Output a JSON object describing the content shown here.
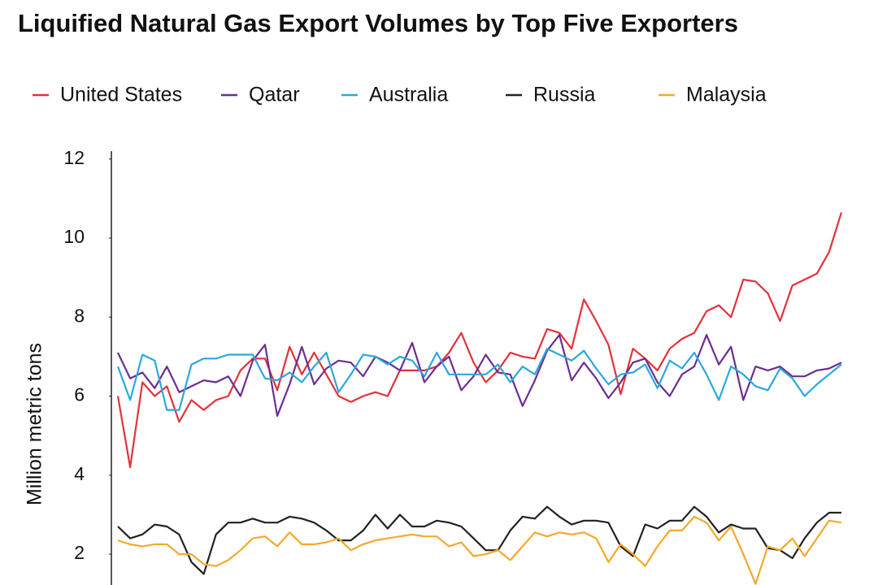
{
  "chart_data": {
    "type": "line",
    "title": "Liquified Natural Gas Export Volumes by Top Five Exporters",
    "y_label": "Million metric tons",
    "categories": [
      null,
      null,
      null,
      null,
      null,
      null,
      null,
      null,
      null,
      null,
      null,
      null,
      null,
      null,
      null,
      null,
      null,
      null,
      null,
      null,
      null,
      null,
      null,
      null,
      null,
      null,
      null,
      null,
      null,
      null,
      null,
      null,
      null,
      null,
      null,
      null,
      null,
      null,
      null,
      null,
      null,
      null,
      null,
      null,
      null,
      null,
      null,
      null,
      null,
      null,
      null,
      null,
      null,
      null,
      null,
      null,
      null,
      null,
      null,
      null
    ],
    "ylim": [
      1.2,
      12.2
    ],
    "yticks": [
      2,
      4,
      6,
      8,
      10,
      12
    ],
    "grid": false,
    "legend": "top",
    "series": [
      {
        "name": "United States",
        "color": "#e3323b",
        "values": [
          6.0,
          4.2,
          6.35,
          6.0,
          6.25,
          5.35,
          5.9,
          5.65,
          5.9,
          6.0,
          6.65,
          6.95,
          6.95,
          6.15,
          7.25,
          6.55,
          7.1,
          6.55,
          6.0,
          5.85,
          6.0,
          6.1,
          6.0,
          6.65,
          6.65,
          6.65,
          6.75,
          7.1,
          7.6,
          6.85,
          6.35,
          6.65,
          7.1,
          7.0,
          6.95,
          7.7,
          7.6,
          7.2,
          8.45,
          7.9,
          7.3,
          6.05,
          7.2,
          6.95,
          6.65,
          7.2,
          7.45,
          7.6,
          8.15,
          8.3,
          8.0,
          8.95,
          8.9,
          8.6,
          7.9,
          8.8,
          8.95,
          9.1,
          9.65,
          10.65
        ]
      },
      {
        "name": "Qatar",
        "color": "#6b2e92",
        "values": [
          7.1,
          6.45,
          6.6,
          6.2,
          6.75,
          6.1,
          6.25,
          6.4,
          6.35,
          6.5,
          6.0,
          6.9,
          7.3,
          5.5,
          6.3,
          7.25,
          6.3,
          6.7,
          6.9,
          6.85,
          6.5,
          7.0,
          6.85,
          6.65,
          7.35,
          6.35,
          6.75,
          7.0,
          6.15,
          6.5,
          7.05,
          6.6,
          6.55,
          5.75,
          6.4,
          7.15,
          7.55,
          6.4,
          6.85,
          6.45,
          5.95,
          6.35,
          6.85,
          6.95,
          6.35,
          6.0,
          6.55,
          6.75,
          7.55,
          6.8,
          7.25,
          5.9,
          6.75,
          6.65,
          6.75,
          6.5,
          6.5,
          6.65,
          6.7,
          6.85
        ]
      },
      {
        "name": "Australia",
        "color": "#2aa8df",
        "values": [
          6.75,
          5.9,
          7.05,
          6.9,
          5.65,
          5.65,
          6.8,
          6.95,
          6.95,
          7.05,
          7.05,
          7.05,
          6.45,
          6.4,
          6.6,
          6.35,
          6.75,
          7.1,
          6.1,
          6.55,
          7.05,
          7.0,
          6.8,
          7.0,
          6.9,
          6.5,
          7.1,
          6.55,
          6.55,
          6.55,
          6.55,
          6.8,
          6.35,
          6.75,
          6.55,
          7.2,
          7.05,
          6.9,
          7.15,
          6.7,
          6.3,
          6.55,
          6.6,
          6.8,
          6.2,
          6.9,
          6.7,
          7.1,
          6.55,
          5.9,
          6.75,
          6.55,
          6.25,
          6.15,
          6.7,
          6.45,
          6.0,
          6.3,
          6.55,
          6.8
        ]
      },
      {
        "name": "Russia",
        "color": "#222222",
        "values": [
          2.7,
          2.4,
          2.5,
          2.75,
          2.7,
          2.5,
          1.8,
          1.5,
          2.5,
          2.8,
          2.8,
          2.9,
          2.8,
          2.8,
          2.95,
          2.9,
          2.8,
          2.6,
          2.35,
          2.35,
          2.6,
          3.0,
          2.65,
          3.0,
          2.7,
          2.7,
          2.85,
          2.8,
          2.7,
          2.4,
          2.1,
          2.1,
          2.6,
          2.95,
          2.9,
          3.2,
          2.95,
          2.75,
          2.85,
          2.85,
          2.8,
          2.2,
          1.95,
          2.75,
          2.65,
          2.85,
          2.85,
          3.2,
          2.95,
          2.55,
          2.75,
          2.65,
          2.65,
          2.15,
          2.1,
          1.9,
          2.4,
          2.8,
          3.05,
          3.05
        ]
      },
      {
        "name": "Malaysia",
        "color": "#f5a92a",
        "values": [
          2.35,
          2.25,
          2.2,
          2.25,
          2.25,
          2.0,
          2.0,
          1.75,
          1.7,
          1.85,
          2.1,
          2.4,
          2.45,
          2.2,
          2.55,
          2.25,
          2.25,
          2.3,
          2.4,
          2.1,
          2.25,
          2.35,
          2.4,
          2.45,
          2.5,
          2.45,
          2.45,
          2.2,
          2.3,
          1.95,
          2.0,
          2.1,
          1.85,
          2.2,
          2.55,
          2.45,
          2.55,
          2.5,
          2.55,
          2.4,
          1.8,
          2.25,
          2.0,
          1.7,
          2.2,
          2.6,
          2.6,
          2.95,
          2.8,
          2.35,
          2.7,
          2.0,
          1.25,
          2.2,
          2.1,
          2.4,
          1.95,
          2.4,
          2.85,
          2.8
        ]
      }
    ]
  }
}
